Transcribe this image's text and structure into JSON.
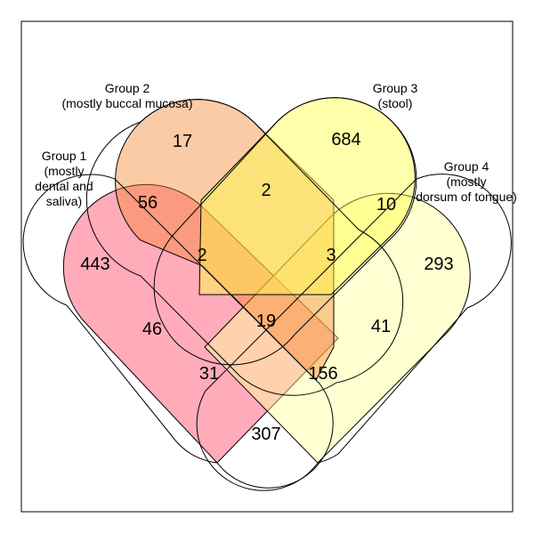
{
  "groups": [
    {
      "id": "g1",
      "label_lines": [
        "Group 1",
        "(mostly",
        "dental and",
        "saliva)"
      ],
      "color": "#ff4466",
      "opacity": 0.45
    },
    {
      "id": "g2",
      "label_lines": [
        "Group 2",
        "(mostly buccal mucosa)"
      ],
      "color": "#f5822a",
      "opacity": 0.42
    },
    {
      "id": "g3",
      "label_lines": [
        "Group 3",
        "(stool)"
      ],
      "color": "#ffff44",
      "opacity": 0.45
    },
    {
      "id": "g4",
      "label_lines": [
        "Group 4",
        "(mostly",
        "dorsum of tongue)"
      ],
      "color": "#ffff9c",
      "opacity": 0.45
    }
  ],
  "regions": [
    {
      "sets": "1",
      "count": "443"
    },
    {
      "sets": "2",
      "count": "17"
    },
    {
      "sets": "3",
      "count": "684"
    },
    {
      "sets": "4",
      "count": "293"
    },
    {
      "sets": "1,2",
      "count": "56"
    },
    {
      "sets": "2,3",
      "count": "2"
    },
    {
      "sets": "3,4",
      "count": "10"
    },
    {
      "sets": "1,2,3",
      "count": "2"
    },
    {
      "sets": "2,3,4",
      "count": "3"
    },
    {
      "sets": "1,2,3,4",
      "count": "19"
    },
    {
      "sets": "1,3",
      "count": "46"
    },
    {
      "sets": "2,4",
      "count": "41"
    },
    {
      "sets": "1,3,4",
      "count": "31"
    },
    {
      "sets": "1,2,4",
      "count": "156"
    },
    {
      "sets": "1,4",
      "count": "307"
    }
  ]
}
